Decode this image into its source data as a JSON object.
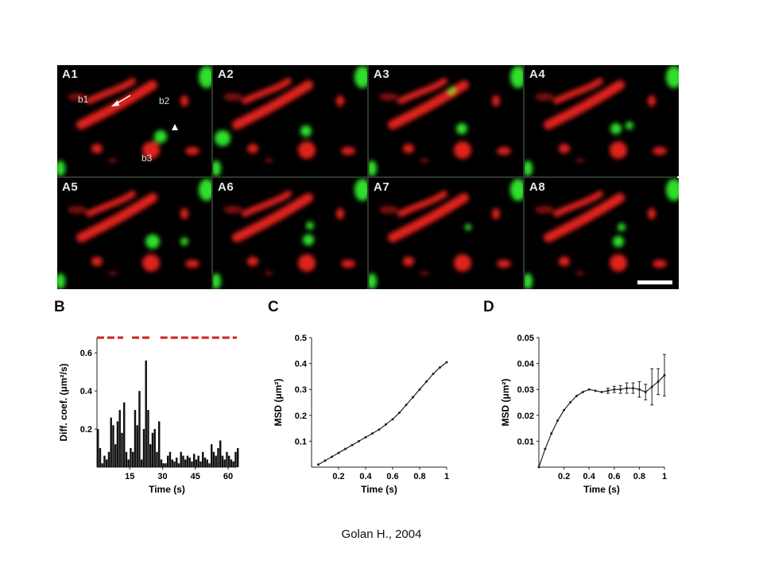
{
  "micrograph": {
    "panels": [
      "A1",
      "A2",
      "A3",
      "A4",
      "A5",
      "A6",
      "A7",
      "A8"
    ],
    "annotations": {
      "b1": "b1",
      "b2": "b2",
      "b3": "b3"
    },
    "colors": {
      "red": "#e0201c",
      "green": "#2ee02a"
    }
  },
  "caption": "Golan H., 2004",
  "chart_data": [
    {
      "panel": "B",
      "type": "bar",
      "xlabel": "Time (s)",
      "ylabel": "Diff. coef. (μm²/s)",
      "xlim": [
        0,
        64
      ],
      "ylim": [
        0,
        0.68
      ],
      "xticks": [
        "15",
        "30",
        "45",
        "60"
      ],
      "yticks": [
        "0.2",
        "0.4",
        "0.6"
      ],
      "confinement_bar_color": "#d0201c",
      "x": [
        0,
        1,
        2,
        3,
        4,
        5,
        6,
        7,
        8,
        9,
        10,
        11,
        12,
        13,
        14,
        15,
        16,
        17,
        18,
        19,
        20,
        21,
        22,
        23,
        24,
        25,
        26,
        27,
        28,
        29,
        30,
        31,
        32,
        33,
        34,
        35,
        36,
        37,
        38,
        39,
        40,
        41,
        42,
        43,
        44,
        45,
        46,
        47,
        48,
        49,
        50,
        51,
        52,
        53,
        54,
        55,
        56,
        57,
        58,
        59,
        60,
        61,
        62,
        63,
        64
      ],
      "values": [
        0.2,
        0.1,
        0.02,
        0.06,
        0.04,
        0.08,
        0.26,
        0.22,
        0.12,
        0.24,
        0.3,
        0.18,
        0.34,
        0.08,
        0.04,
        0.1,
        0.08,
        0.3,
        0.22,
        0.4,
        0.04,
        0.2,
        0.56,
        0.3,
        0.12,
        0.18,
        0.2,
        0.08,
        0.24,
        0.04,
        0.02,
        0.02,
        0.06,
        0.08,
        0.04,
        0.03,
        0.05,
        0.02,
        0.08,
        0.06,
        0.04,
        0.06,
        0.05,
        0.03,
        0.07,
        0.04,
        0.06,
        0.03,
        0.08,
        0.05,
        0.04,
        0.02,
        0.12,
        0.08,
        0.06,
        0.1,
        0.14,
        0.06,
        0.04,
        0.08,
        0.06,
        0.04,
        0.03,
        0.08,
        0.1
      ]
    },
    {
      "panel": "C",
      "type": "line",
      "xlabel": "Time (s)",
      "ylabel": "MSD (μm²)",
      "xlim": [
        0,
        1
      ],
      "ylim": [
        0,
        0.5
      ],
      "xticks": [
        "0.2",
        "0.4",
        "0.6",
        "0.8",
        "1"
      ],
      "yticks": [
        "0.1",
        "0.2",
        "0.3",
        "0.4",
        "0.5"
      ],
      "x": [
        0.05,
        0.1,
        0.15,
        0.2,
        0.25,
        0.3,
        0.35,
        0.4,
        0.45,
        0.5,
        0.55,
        0.6,
        0.65,
        0.7,
        0.75,
        0.8,
        0.85,
        0.9,
        0.95,
        1.0
      ],
      "y": [
        0.01,
        0.025,
        0.04,
        0.055,
        0.07,
        0.085,
        0.1,
        0.115,
        0.13,
        0.145,
        0.165,
        0.185,
        0.21,
        0.24,
        0.27,
        0.3,
        0.33,
        0.36,
        0.385,
        0.405
      ]
    },
    {
      "panel": "D",
      "type": "line",
      "xlabel": "Time (s)",
      "ylabel": "MSD (μm²)",
      "xlim": [
        0,
        1
      ],
      "ylim": [
        0,
        0.05
      ],
      "xticks": [
        "0.2",
        "0.4",
        "0.6",
        "0.8",
        "1"
      ],
      "yticks": [
        "0.01",
        "0.02",
        "0.03",
        "0.04",
        "0.05"
      ],
      "x": [
        0.0,
        0.05,
        0.1,
        0.15,
        0.2,
        0.25,
        0.3,
        0.35,
        0.4,
        0.45,
        0.5,
        0.55,
        0.6,
        0.65,
        0.7,
        0.75,
        0.8,
        0.85,
        0.9,
        0.95,
        1.0
      ],
      "y": [
        0.0,
        0.007,
        0.013,
        0.018,
        0.022,
        0.025,
        0.0275,
        0.029,
        0.03,
        0.0295,
        0.029,
        0.0295,
        0.03,
        0.03,
        0.0305,
        0.0305,
        0.03,
        0.029,
        0.031,
        0.033,
        0.0355
      ],
      "err": [
        0,
        0,
        0,
        0,
        0,
        0,
        0,
        0,
        0,
        0,
        0,
        0.001,
        0.0012,
        0.0015,
        0.002,
        0.002,
        0.003,
        0.003,
        0.007,
        0.005,
        0.008
      ]
    }
  ]
}
